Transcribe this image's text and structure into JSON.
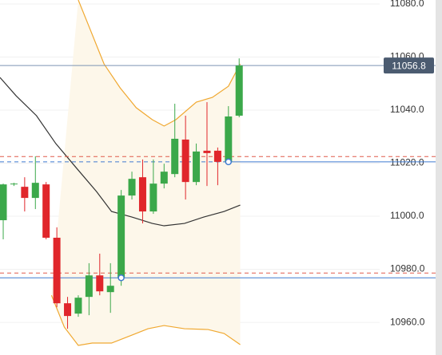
{
  "chart_data": {
    "type": "candlestick",
    "ylim": [
      10947.7,
      11081.5
    ],
    "xlim": [
      -0.3,
      35.1
    ],
    "yticks": [
      {
        "value": 11080,
        "label": "11080.0"
      },
      {
        "value": 11060,
        "label": "11060.0"
      },
      {
        "value": 11040,
        "label": "11040.0"
      },
      {
        "value": 11020,
        "label": "11020.0"
      },
      {
        "value": 11000,
        "label": "11000.0"
      },
      {
        "value": 10980,
        "label": "10980.0"
      },
      {
        "value": 10960,
        "label": "10960.0"
      }
    ],
    "grid": true,
    "up_color": "#3ba84a",
    "down_color": "#e0262b",
    "open": [
      10998.5,
      11012.0,
      11011.1,
      11006.9,
      11012.0,
      10991.9,
      10967.2,
      10963.3,
      10969.6,
      10977.7,
      10971.4,
      10976.8,
      11007.8,
      11014.7,
      11001.8,
      11012.3,
      11015.9,
      11028.9,
      11012.9,
      11024.7,
      11024.7,
      11020.5,
      11037.9
    ],
    "high": [
      11012.3,
      11012.6,
      11014.7,
      11022.6,
      11012.9,
      10995.8,
      10969.6,
      10970.2,
      10982.3,
      10985.9,
      10982.3,
      11009.9,
      11016.8,
      11021.4,
      11021.4,
      11019.8,
      11042.4,
      11037.9,
      11027.4,
      11043.0,
      11025.9,
      11041.5,
      11059.5
    ],
    "low": [
      10991.3,
      11011.4,
      11001.8,
      11002.7,
      10991.3,
      10965.7,
      10957.6,
      10962.1,
      10962.7,
      10970.2,
      10963.6,
      10973.8,
      11006.3,
      10997.3,
      11000.9,
      11010.5,
      11014.7,
      11006.3,
      11011.7,
      11011.4,
      11011.7,
      11019.9,
      11037.3
    ],
    "close": [
      11012.0,
      11012.3,
      11006.9,
      11012.6,
      10991.9,
      10967.2,
      10962.4,
      10969.3,
      10977.7,
      10971.7,
      10973.8,
      11007.8,
      11014.1,
      11001.8,
      11012.3,
      11016.8,
      11029.2,
      11012.9,
      11024.4,
      11023.8,
      11020.5,
      11037.6,
      11056.8
    ],
    "bands": {
      "color": "#f0a830",
      "fill": "#fdf7ea",
      "mid_color": "#333333",
      "upper": {
        "x": [
          7.0,
          7.9,
          9.4,
          10.9,
          12.4,
          13.9,
          15.0,
          16.1,
          18.0,
          19.5,
          21.0,
          22.1
        ],
        "values": [
          11081.5,
          11072.5,
          11057.4,
          11048.4,
          11040.9,
          11036.4,
          11034.0,
          11036.4,
          11043.0,
          11044.8,
          11049.0,
          11057.4
        ]
      },
      "lower": {
        "x": [
          4.5,
          5.7,
          7.0,
          8.3,
          10.1,
          12.0,
          13.5,
          15.0,
          16.9,
          19.1,
          20.6,
          22.1
        ],
        "values": [
          10970.2,
          10958.2,
          10951.3,
          10952.2,
          10952.2,
          10955.2,
          10957.6,
          10958.8,
          10957.6,
          10957.3,
          10955.8,
          10951.6
        ]
      },
      "middle": {
        "x": [
          -0.3,
          1.2,
          3.1,
          4.9,
          6.8,
          8.7,
          10.1,
          12.0,
          13.9,
          15.0,
          16.9,
          18.7,
          20.6,
          22.1
        ],
        "values": [
          11052.3,
          11045.4,
          11037.9,
          11027.4,
          11018.3,
          11009.3,
          11001.8,
          10999.7,
          10997.3,
          10996.4,
          10997.3,
          10999.7,
          11001.8,
          11004.2
        ]
      }
    },
    "levels": [
      {
        "value": 11056.8,
        "color": "#7d95b5",
        "style": "solid"
      },
      {
        "value": 11022.5,
        "color": "#e05a4a",
        "style": "dashed"
      },
      {
        "value": 11020.5,
        "color": "#3f7ad0",
        "style": "dashed-solid",
        "split": 21
      },
      {
        "value": 10978.6,
        "color": "#e05a4a",
        "style": "dashed"
      },
      {
        "value": 10976.8,
        "color": "#3f7ad0",
        "style": "solid",
        "marker": 11
      }
    ],
    "last_price": 11056.8,
    "last_price_color": "#4b5b70"
  }
}
